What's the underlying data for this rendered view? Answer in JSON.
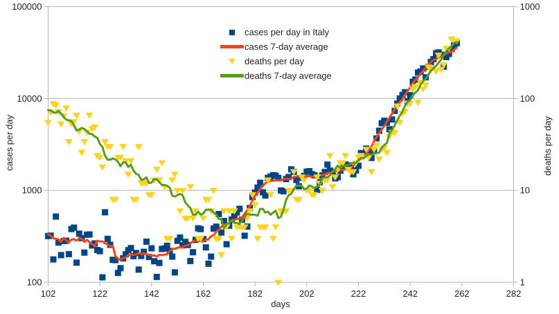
{
  "chart_data": {
    "type": "scatter",
    "xlabel": "days",
    "ylabel_left": "cases per day",
    "ylabel_right": "deaths per day",
    "x_axis": {
      "min": 102,
      "max": 282,
      "ticks": [
        102,
        122,
        142,
        162,
        182,
        202,
        222,
        242,
        262,
        282
      ]
    },
    "y_axis_left": {
      "scale": "log",
      "min": 100,
      "max": 100000,
      "ticks": [
        100,
        1000,
        10000,
        100000
      ]
    },
    "y_axis_right": {
      "scale": "log",
      "min": 1,
      "max": 1000,
      "ticks": [
        1,
        10,
        100,
        1000
      ]
    },
    "grid": "horizontal-major",
    "legend_position": "inside-top-center",
    "colors": {
      "cases": "#004586",
      "cases_average": "#FF420E",
      "deaths": "#FFD320",
      "deaths_average": "#579D1C",
      "grid": "#b3b3b3",
      "text": "#222222",
      "background": "#ffffff"
    },
    "start_day": 102,
    "series": [
      {
        "name": "cases per day in Italy",
        "type": "scatter",
        "marker": "square",
        "axis": "left",
        "color": "#004586",
        "values": [
          318,
          321,
          177,
          518,
          270,
          197,
          280,
          283,
          202,
          379,
          393,
          163,
          338,
          301,
          210,
          329,
          331,
          251,
          264,
          224,
          218,
          113,
          577,
          296,
          255,
          175,
          174,
          126,
          142,
          182,
          201,
          223,
          235,
          192,
          208,
          137,
          193,
          214,
          276,
          188,
          234,
          169,
          114,
          162,
          230,
          233,
          249,
          219,
          190,
          128,
          282,
          306,
          252,
          275,
          254,
          170,
          212,
          289,
          386,
          379,
          295,
          239,
          159,
          190,
          384,
          402,
          552,
          347,
          463,
          259,
          412,
          481,
          523,
          574,
          629,
          479,
          320,
          403,
          642,
          845,
          947,
          1071,
          1210,
          953,
          878,
          1367,
          1411,
          1462,
          1444,
          1365,
          996,
          978,
          1326,
          1397,
          1695,
          1587,
          1297,
          1108,
          1370,
          1434,
          1597,
          1616,
          1501,
          1458,
          1008,
          1229,
          1452,
          1585,
          1907,
          1638,
          1587,
          1350,
          1392,
          1640,
          1786,
          1912,
          1869,
          1766,
          1494,
          1648,
          1851,
          2548,
          2499,
          2844,
          2578,
          2257,
          2677,
          3678,
          4458,
          5372,
          5724,
          5456,
          4619,
          5901,
          7332,
          8804,
          10010,
          10925,
          11705,
          9338,
          10874,
          15199,
          16079,
          19143,
          19644,
          21273,
          17012,
          21994,
          24991,
          26831,
          31084,
          31758,
          29907,
          22253,
          28244,
          30550,
          34505,
          37809,
          39811
        ]
      },
      {
        "name": "cases 7-day average",
        "type": "line",
        "axis": "left",
        "color": "#FF420E",
        "derived_from": 0,
        "window": 7,
        "centered": true
      },
      {
        "name": "deaths per day",
        "type": "scatter",
        "marker": "triangle-down",
        "axis": "right",
        "color": "#FFD320",
        "values": [
          55,
          71,
          88,
          85,
          72,
          53,
          65,
          79,
          34,
          53,
          56,
          66,
          44,
          26,
          34,
          43,
          66,
          47,
          49,
          24,
          23,
          18,
          34,
          30,
          30,
          8,
          8,
          23,
          23,
          30,
          21,
          15,
          21,
          8,
          8,
          30,
          12,
          12,
          12,
          9,
          9,
          13,
          17,
          13,
          20,
          11,
          3,
          3,
          13,
          15,
          10,
          6,
          10,
          5,
          5,
          11,
          5,
          6,
          3,
          3,
          5,
          8,
          8,
          6,
          10,
          3,
          3,
          2,
          6,
          4,
          6,
          3,
          6,
          4,
          4,
          4,
          4,
          5,
          6,
          9,
          7,
          3,
          4,
          4,
          4,
          13,
          9,
          3,
          4,
          1,
          6,
          6,
          6,
          10,
          10,
          16,
          8,
          8,
          14,
          13,
          10,
          10,
          9,
          9,
          14,
          12,
          10,
          13,
          13,
          24,
          11,
          14,
          17,
          20,
          20,
          24,
          17,
          16,
          16,
          20,
          23,
          24,
          23,
          28,
          23,
          16,
          28,
          31,
          22,
          28,
          29,
          26,
          39,
          43,
          43,
          83,
          55,
          69,
          73,
          89,
          89,
          127,
          136,
          91,
          151,
          128,
          141,
          221,
          205,
          217,
          199,
          297,
          208,
          233,
          353,
          352,
          445,
          425,
          425
        ]
      },
      {
        "name": "deaths 7-day average",
        "type": "line",
        "axis": "right",
        "color": "#579D1C",
        "derived_from": 2,
        "window": 7,
        "centered": true
      }
    ]
  }
}
